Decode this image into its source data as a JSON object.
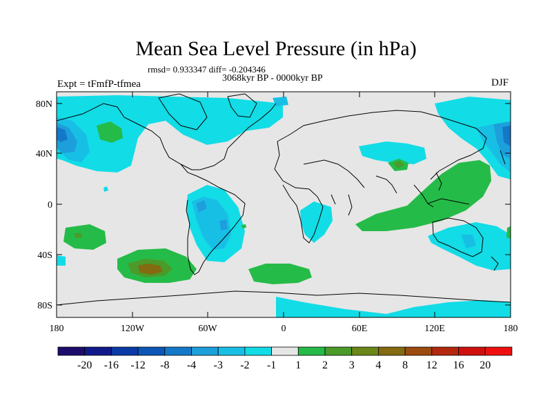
{
  "title": "Mean Sea Level Pressure (in hPa)",
  "stats_text": "rmsd= 0.933347  diff= -0.204346",
  "period_text": "3068kyr BP - 0000kyr BP",
  "experiment_text": "Expt = tFmfP-tfmea",
  "season": "DJF",
  "y_ticks": [
    "80N",
    "40N",
    "0",
    "40S",
    "80S"
  ],
  "x_ticks": [
    "180",
    "120W",
    "60W",
    "0",
    "60E",
    "120E",
    "180"
  ],
  "colorbar": {
    "labels": [
      "-20",
      "-16",
      "-12",
      "-8",
      "-4",
      "-3",
      "-2",
      "-1",
      "1",
      "2",
      "3",
      "4",
      "8",
      "12",
      "16",
      "20"
    ],
    "colors": [
      "#1d0c6b",
      "#101a8a",
      "#0a3aa6",
      "#0b56b6",
      "#1478c8",
      "#1d9fdc",
      "#18bfe5",
      "#12dce6",
      "#e6e6e6",
      "#25bb48",
      "#4b9a2a",
      "#6b8718",
      "#846a10",
      "#9b4a10",
      "#b4280e",
      "#d1100c",
      "#ee1010"
    ]
  },
  "colors": {
    "background_fill": "#e6e6e6",
    "neg1": "#12dce6",
    "neg2": "#18bfe5",
    "neg3": "#1d9fdc",
    "neg4": "#1478c8",
    "pos1": "#25bb48",
    "pos2": "#4b9a2a",
    "pos3": "#846a10"
  }
}
